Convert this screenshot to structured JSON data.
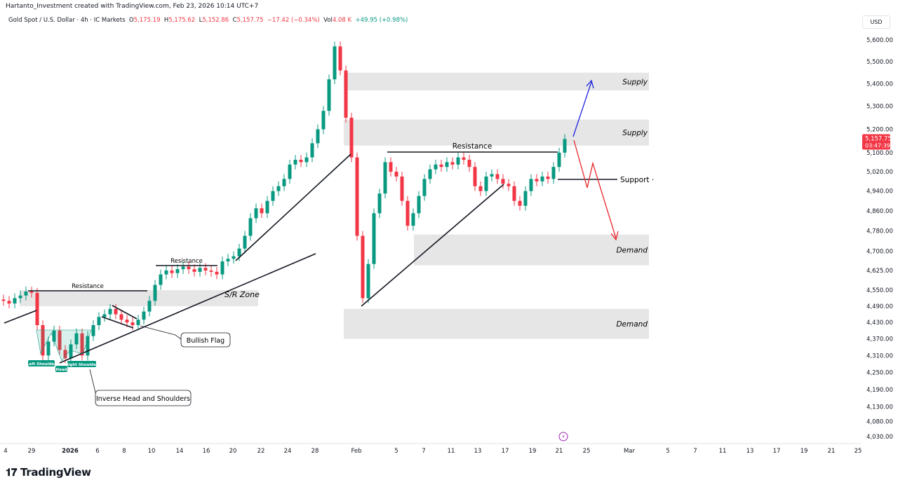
{
  "header": {
    "attribution": "Hartanto_Investment created with TradingView.com, Feb 23, 2026 10:14 UTC+7"
  },
  "legend": {
    "symbol": "Gold Spot / U.S. Dollar · 4h · IC Markets",
    "o_label": "O",
    "o": "5,175.19",
    "h_label": "H",
    "h": "5,175.62",
    "l_label": "L",
    "l": "5,152.86",
    "c_label": "C",
    "c": "5,157.75",
    "change": "−17.42 (−0.34%)",
    "vol_label": "Vol",
    "vol": "4.08 K",
    "extra": "+49.95 (+0.98%)"
  },
  "currency": "USD",
  "last_price": {
    "price": "5,157.75",
    "countdown": "03:47:39"
  },
  "brand": "TradingView",
  "colors": {
    "up": "#089981",
    "down": "#f23645",
    "zone": "#e6e6e6",
    "bull_arrow": "#1e22e0",
    "bear_arrow": "#e8262c",
    "pattern_label": "#089981"
  },
  "chart_data": {
    "type": "candlestick",
    "title": "Gold Spot / U.S. Dollar · 4h · IC Markets",
    "y_scale": "log",
    "ylim": [
      4030,
      5600
    ],
    "y_ticks": [
      "5,600.00",
      "5,500.00",
      "5,400.00",
      "5,300.00",
      "5,200.00",
      "5,100.00",
      "5,020.00",
      "4,940.00",
      "4,860.00",
      "4,780.00",
      "4,700.00",
      "4,625.00",
      "4,550.00",
      "4,490.00",
      "4,430.00",
      "4,370.00",
      "4,310.00",
      "4,250.00",
      "4,190.00",
      "4,130.00",
      "4,080.00",
      "4,030.00"
    ],
    "x_ticks": [
      "4",
      "29",
      "2026",
      "6",
      "8",
      "10",
      "14",
      "16",
      "20",
      "22",
      "24",
      "28",
      "Feb",
      "5",
      "7",
      "11",
      "13",
      "17",
      "19",
      "21",
      "25",
      "Mar",
      "5",
      "7",
      "11",
      "13",
      "17",
      "19",
      "21",
      "25"
    ],
    "closes": [
      4510,
      4500,
      4520,
      4530,
      4545,
      4540,
      4420,
      4310,
      4360,
      4400,
      4330,
      4300,
      4350,
      4390,
      4310,
      4380,
      4420,
      4450,
      4460,
      4480,
      4460,
      4440,
      4430,
      4420,
      4440,
      4470,
      4510,
      4570,
      4610,
      4625,
      4615,
      4630,
      4640,
      4630,
      4620,
      4635,
      4625,
      4620,
      4610,
      4660,
      4670,
      4680,
      4710,
      4760,
      4830,
      4870,
      4850,
      4900,
      4940,
      4960,
      4990,
      5050,
      5070,
      5060,
      5080,
      5140,
      5200,
      5280,
      5420,
      5570,
      5460,
      5250,
      5080,
      4760,
      4520,
      4650,
      4850,
      4930,
      5060,
      5020,
      5000,
      4900,
      4800,
      4850,
      4920,
      4990,
      5030,
      5050,
      5040,
      5060,
      5050,
      5080,
      5070,
      5040,
      4960,
      4940,
      5000,
      5010,
      4990,
      4970,
      4960,
      4900,
      4880,
      4940,
      4990,
      4980,
      5000,
      4990,
      5040,
      5100,
      5158
    ],
    "zones": [
      {
        "label": "Supply",
        "from": 5370,
        "to": 5450
      },
      {
        "label": "Supply",
        "from": 5130,
        "to": 5242
      },
      {
        "label": "Demand",
        "from": 4645,
        "to": 4765
      },
      {
        "label": "Demand",
        "from": 4370,
        "to": 4480
      },
      {
        "label": "S/R Zone",
        "from": 4490,
        "to": 4550
      }
    ],
    "annotations": {
      "resistance_1": "Resistance",
      "resistance_2": "Resistance",
      "resistance_3": "Resistance",
      "support": "Support",
      "bullish_flag": "Bullish Flag",
      "ihs": "Inverse Head and Shoulders",
      "left_shoulder": "Left Shoulder",
      "head": "Head",
      "right_shoulder": "Right Shoulder"
    }
  }
}
